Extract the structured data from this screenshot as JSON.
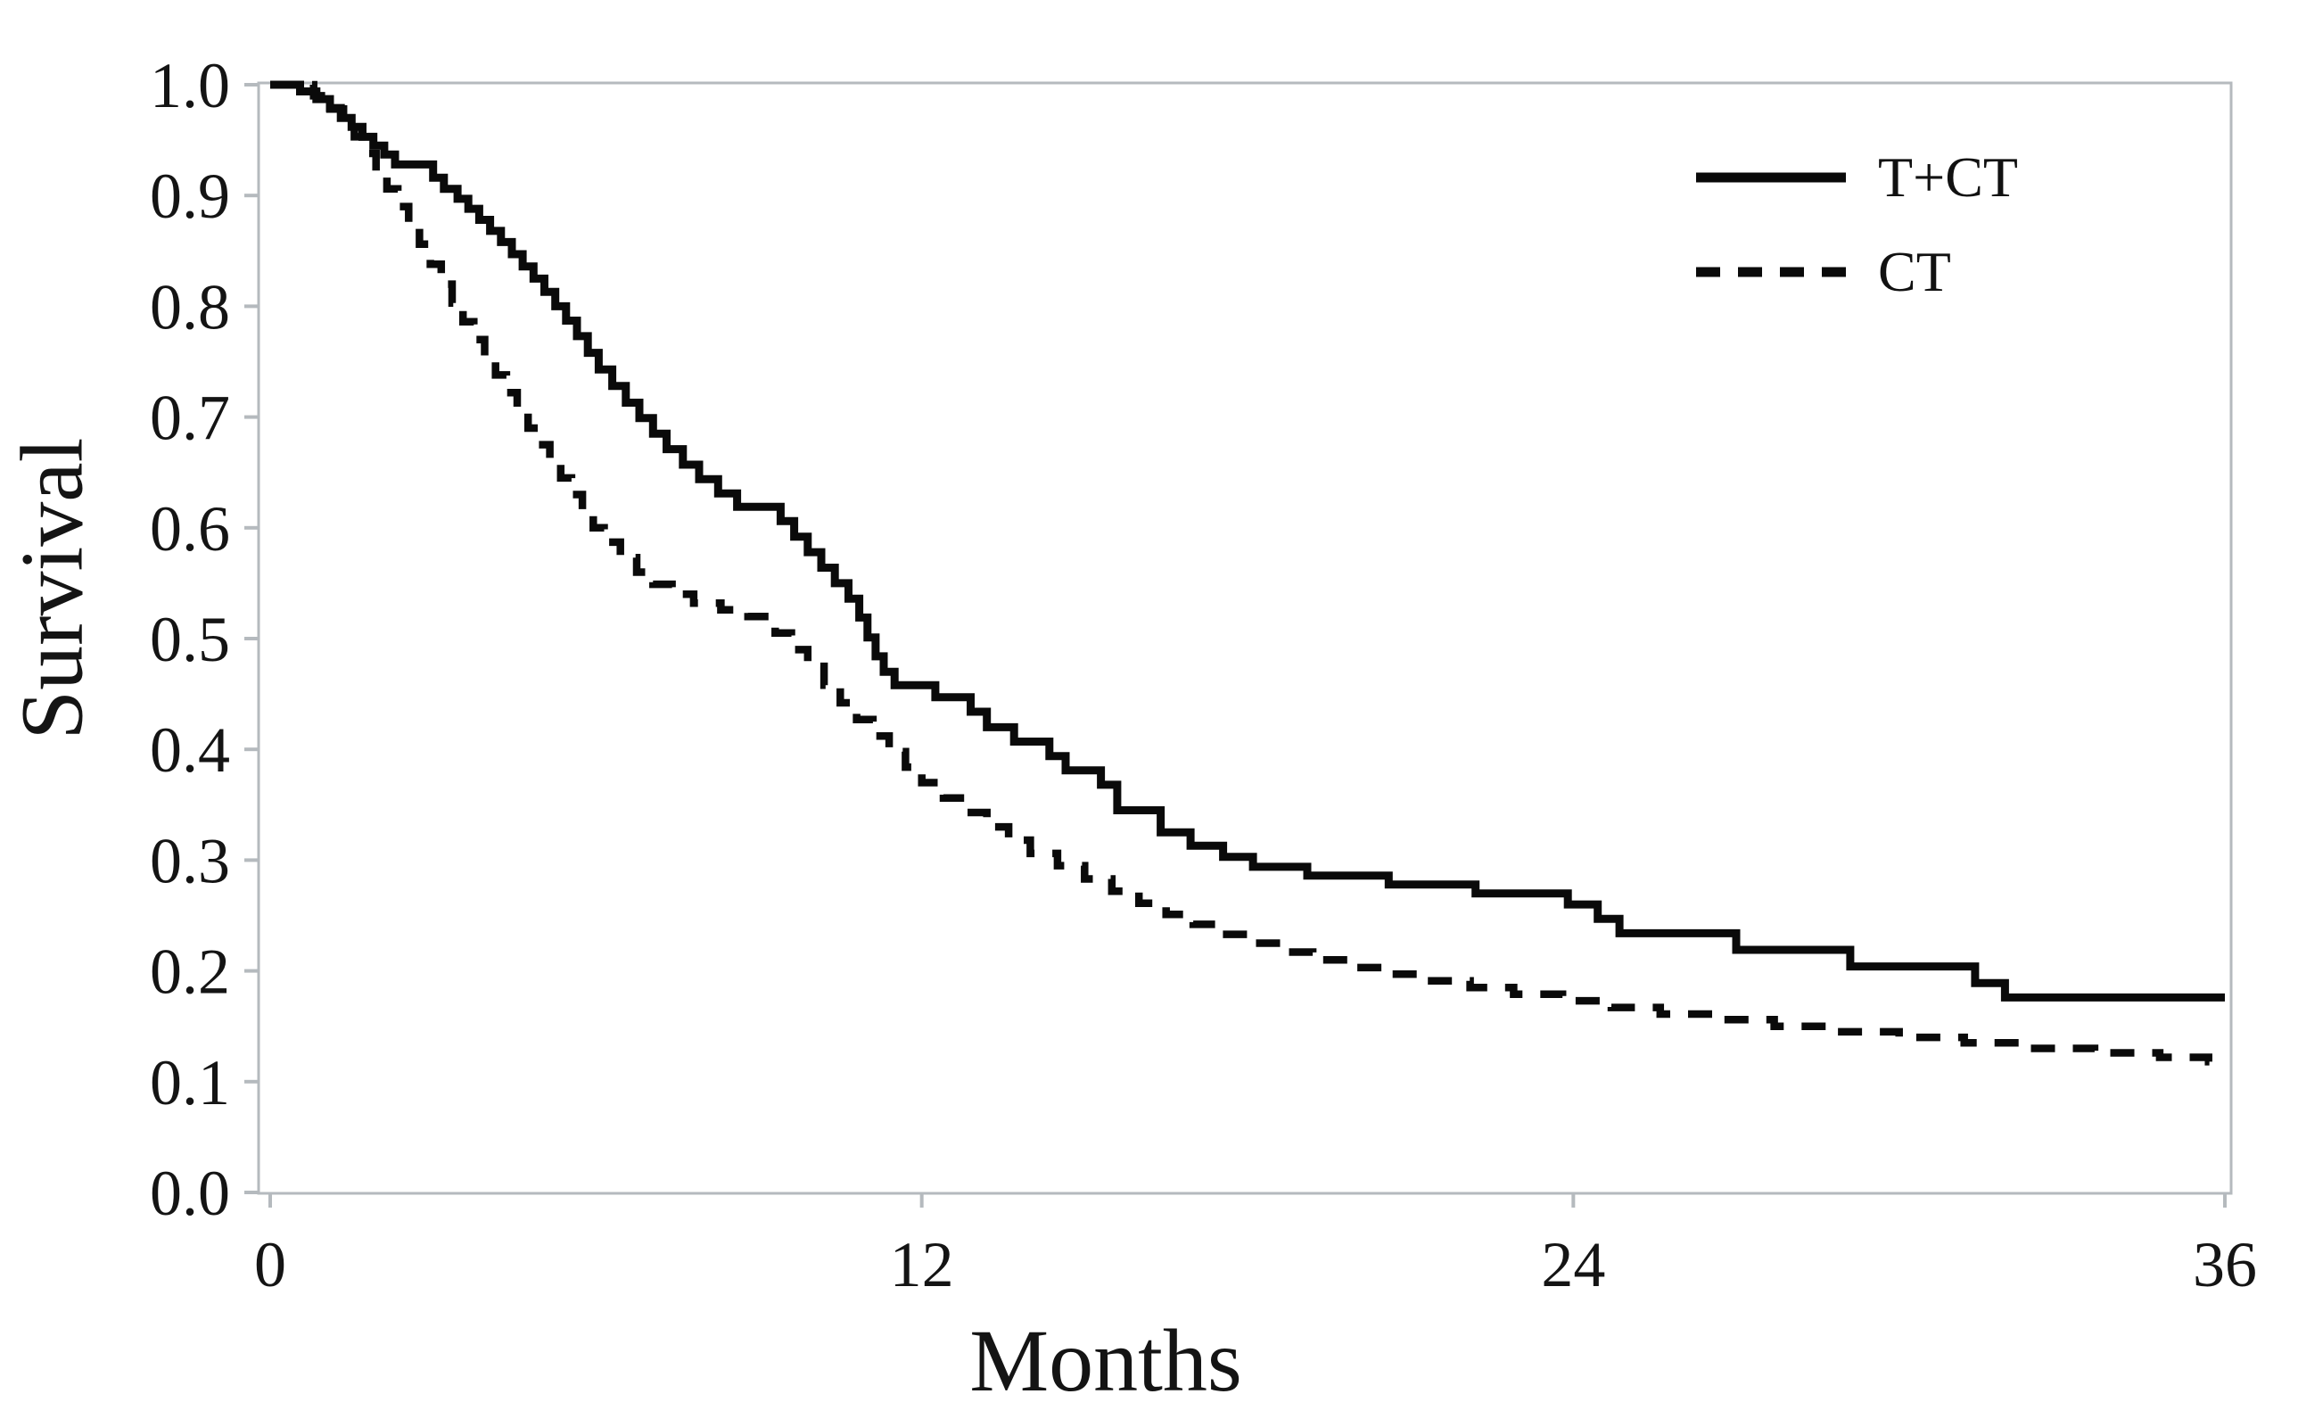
{
  "figure": {
    "background": "#ffffff",
    "description": "Kaplan-Meier survival curves comparing T+CT versus CT"
  },
  "chart_data": {
    "type": "line",
    "subtype": "kaplan-meier-step",
    "title": "",
    "xlabel": "Months",
    "ylabel": "Survival",
    "xlim": [
      0,
      36
    ],
    "ylim": [
      0.0,
      1.0
    ],
    "x_ticks": [
      0,
      12,
      24,
      36
    ],
    "x_tick_labels": [
      "0",
      "12",
      "24",
      "36"
    ],
    "y_ticks": [
      0.0,
      0.1,
      0.2,
      0.3,
      0.4,
      0.5,
      0.6,
      0.7,
      0.8,
      0.9,
      1.0
    ],
    "y_tick_labels": [
      "0.0",
      "0.1",
      "0.2",
      "0.3",
      "0.4",
      "0.5",
      "0.6",
      "0.7",
      "0.8",
      "0.9",
      "1.0"
    ],
    "grid": "off",
    "legend_position": "upper right",
    "colors": {
      "line": "#0a0a0a",
      "axis": "#b5babe",
      "text": "#141414"
    },
    "series": [
      {
        "name": "T+CT",
        "line_style": "solid",
        "points": [
          [
            0,
            1.0
          ],
          [
            0.55,
            0.994
          ],
          [
            0.85,
            0.987
          ],
          [
            1.1,
            0.979
          ],
          [
            1.3,
            0.97
          ],
          [
            1.5,
            0.962
          ],
          [
            1.7,
            0.953
          ],
          [
            1.9,
            0.945
          ],
          [
            2.1,
            0.937
          ],
          [
            2.3,
            0.928
          ],
          [
            3.0,
            0.916
          ],
          [
            3.2,
            0.906
          ],
          [
            3.45,
            0.897
          ],
          [
            3.65,
            0.888
          ],
          [
            3.85,
            0.878
          ],
          [
            4.05,
            0.868
          ],
          [
            4.25,
            0.858
          ],
          [
            4.45,
            0.847
          ],
          [
            4.65,
            0.836
          ],
          [
            4.85,
            0.825
          ],
          [
            5.05,
            0.813
          ],
          [
            5.25,
            0.8
          ],
          [
            5.45,
            0.787
          ],
          [
            5.65,
            0.773
          ],
          [
            5.85,
            0.758
          ],
          [
            6.05,
            0.743
          ],
          [
            6.3,
            0.728
          ],
          [
            6.55,
            0.713
          ],
          [
            6.8,
            0.699
          ],
          [
            7.05,
            0.685
          ],
          [
            7.3,
            0.671
          ],
          [
            7.6,
            0.657
          ],
          [
            7.9,
            0.644
          ],
          [
            8.25,
            0.631
          ],
          [
            8.6,
            0.619
          ],
          [
            9.4,
            0.606
          ],
          [
            9.65,
            0.592
          ],
          [
            9.9,
            0.578
          ],
          [
            10.15,
            0.564
          ],
          [
            10.4,
            0.55
          ],
          [
            10.65,
            0.536
          ],
          [
            10.85,
            0.519
          ],
          [
            11.0,
            0.501
          ],
          [
            11.15,
            0.484
          ],
          [
            11.3,
            0.47
          ],
          [
            11.5,
            0.458
          ],
          [
            12.25,
            0.447
          ],
          [
            12.9,
            0.434
          ],
          [
            13.2,
            0.42
          ],
          [
            13.7,
            0.407
          ],
          [
            14.35,
            0.394
          ],
          [
            14.65,
            0.381
          ],
          [
            15.3,
            0.368
          ],
          [
            15.6,
            0.345
          ],
          [
            16.4,
            0.325
          ],
          [
            16.95,
            0.313
          ],
          [
            17.55,
            0.303
          ],
          [
            18.1,
            0.294
          ],
          [
            19.1,
            0.286
          ],
          [
            20.6,
            0.278
          ],
          [
            22.2,
            0.27
          ],
          [
            23.9,
            0.26
          ],
          [
            24.45,
            0.247
          ],
          [
            24.85,
            0.234
          ],
          [
            27.0,
            0.219
          ],
          [
            29.1,
            0.204
          ],
          [
            31.4,
            0.189
          ],
          [
            31.95,
            0.176
          ],
          [
            36.0,
            0.176
          ]
        ]
      },
      {
        "name": "CT",
        "line_style": "dashed",
        "points": [
          [
            0,
            1.0
          ],
          [
            0.8,
            0.99
          ],
          [
            1.1,
            0.978
          ],
          [
            1.35,
            0.966
          ],
          [
            1.55,
            0.953
          ],
          [
            1.75,
            0.938
          ],
          [
            1.95,
            0.922
          ],
          [
            2.15,
            0.906
          ],
          [
            2.35,
            0.89
          ],
          [
            2.55,
            0.873
          ],
          [
            2.75,
            0.856
          ],
          [
            2.95,
            0.838
          ],
          [
            3.15,
            0.82
          ],
          [
            3.35,
            0.803
          ],
          [
            3.55,
            0.786
          ],
          [
            3.75,
            0.77
          ],
          [
            3.95,
            0.754
          ],
          [
            4.15,
            0.738
          ],
          [
            4.35,
            0.722
          ],
          [
            4.55,
            0.706
          ],
          [
            4.75,
            0.69
          ],
          [
            4.95,
            0.675
          ],
          [
            5.15,
            0.66
          ],
          [
            5.35,
            0.645
          ],
          [
            5.55,
            0.63
          ],
          [
            5.75,
            0.615
          ],
          [
            5.95,
            0.6
          ],
          [
            6.15,
            0.587
          ],
          [
            6.45,
            0.573
          ],
          [
            6.75,
            0.56
          ],
          [
            7.05,
            0.549
          ],
          [
            7.4,
            0.54
          ],
          [
            7.8,
            0.532
          ],
          [
            8.3,
            0.526
          ],
          [
            8.8,
            0.52
          ],
          [
            9.3,
            0.505
          ],
          [
            9.6,
            0.49
          ],
          [
            9.9,
            0.475
          ],
          [
            10.2,
            0.458
          ],
          [
            10.5,
            0.442
          ],
          [
            10.8,
            0.427
          ],
          [
            11.1,
            0.412
          ],
          [
            11.4,
            0.398
          ],
          [
            11.7,
            0.384
          ],
          [
            12.0,
            0.37
          ],
          [
            12.4,
            0.356
          ],
          [
            12.8,
            0.343
          ],
          [
            13.2,
            0.33
          ],
          [
            13.6,
            0.318
          ],
          [
            14.0,
            0.306
          ],
          [
            14.5,
            0.295
          ],
          [
            15.0,
            0.283
          ],
          [
            15.5,
            0.272
          ],
          [
            16.0,
            0.261
          ],
          [
            16.5,
            0.251
          ],
          [
            17.0,
            0.242
          ],
          [
            17.5,
            0.233
          ],
          [
            18.0,
            0.225
          ],
          [
            18.6,
            0.217
          ],
          [
            19.2,
            0.21
          ],
          [
            19.9,
            0.203
          ],
          [
            20.6,
            0.197
          ],
          [
            21.3,
            0.191
          ],
          [
            22.1,
            0.185
          ],
          [
            22.9,
            0.179
          ],
          [
            23.8,
            0.173
          ],
          [
            24.7,
            0.167
          ],
          [
            25.6,
            0.161
          ],
          [
            26.6,
            0.156
          ],
          [
            27.7,
            0.15
          ],
          [
            28.8,
            0.145
          ],
          [
            30.0,
            0.14
          ],
          [
            31.2,
            0.135
          ],
          [
            32.4,
            0.13
          ],
          [
            33.6,
            0.126
          ],
          [
            34.8,
            0.122
          ],
          [
            35.7,
            0.118
          ],
          [
            36.0,
            0.118
          ]
        ]
      }
    ]
  },
  "legend": {
    "items": [
      {
        "label": "T+CT",
        "style": "solid"
      },
      {
        "label": "CT",
        "style": "dashed"
      }
    ]
  }
}
